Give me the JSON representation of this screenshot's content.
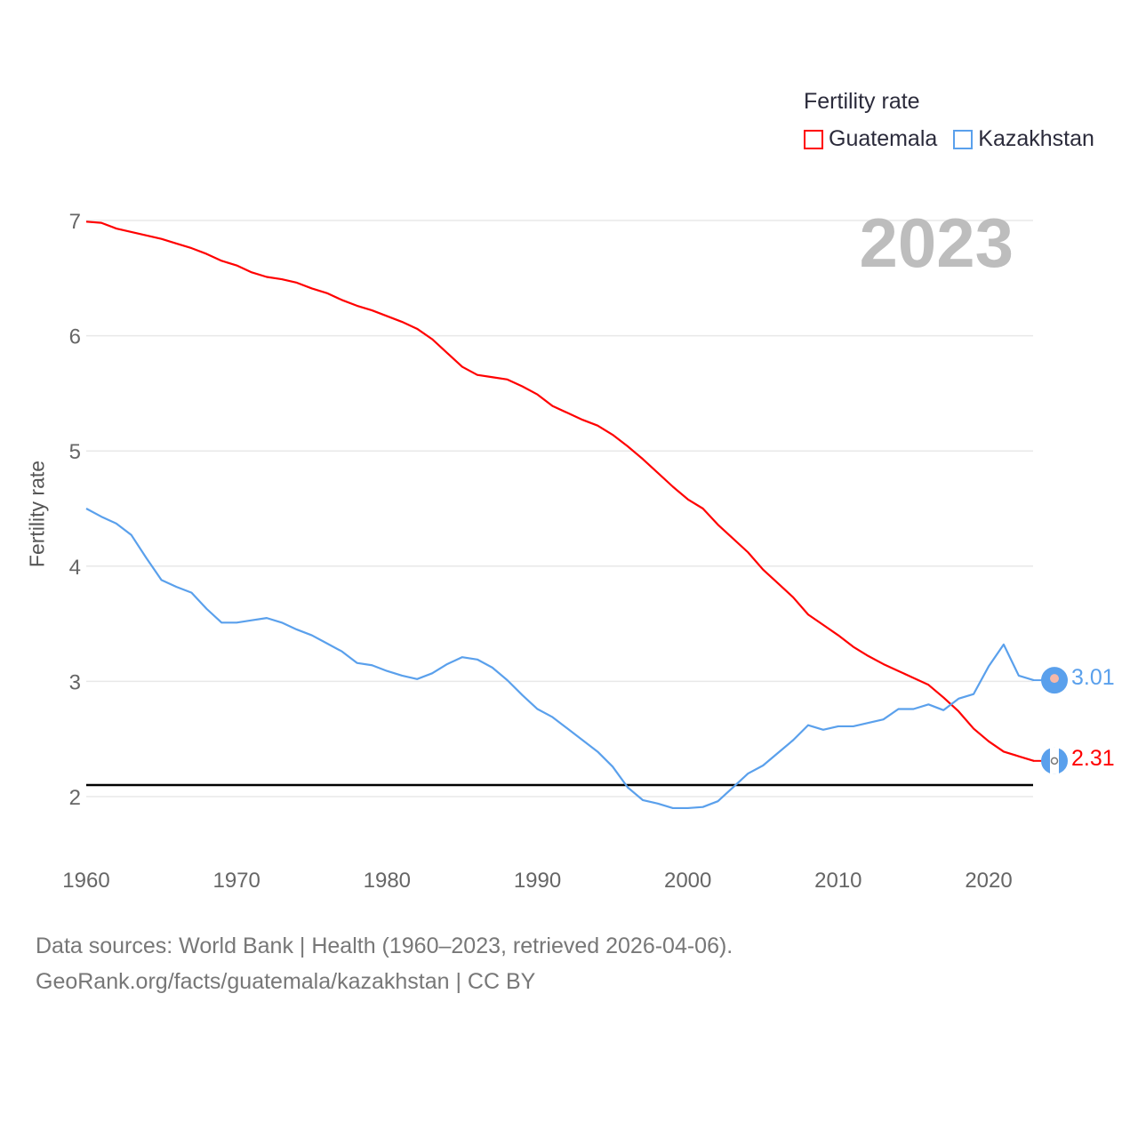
{
  "legend": {
    "title": "Fertility rate",
    "items": [
      {
        "name": "Guatemala",
        "color": "#ff0000"
      },
      {
        "name": "Kazakhstan",
        "color": "#5aa0ec"
      }
    ]
  },
  "year_display": "2023",
  "footer": {
    "line1": "Data sources: World Bank | Health (1960–2023, retrieved 2026-04-06).",
    "line2": "GeoRank.org/facts/guatemala/kazakhstan | CC BY"
  },
  "end_labels": {
    "guatemala": "2.31",
    "kazakhstan": "3.01"
  },
  "chart_data": {
    "type": "line",
    "title": "",
    "xlabel": "",
    "ylabel": "Fertility rate",
    "xlim": [
      1960,
      2023
    ],
    "ylim": [
      1.6,
      7.1
    ],
    "x_ticks": [
      "1960",
      "1970",
      "1980",
      "1990",
      "2000",
      "2010",
      "2020"
    ],
    "y_ticks": [
      "2",
      "3",
      "4",
      "5",
      "6",
      "7"
    ],
    "reference_line": 2.1,
    "grid": true,
    "legend_position": "top-right",
    "x": [
      1960,
      1961,
      1962,
      1963,
      1964,
      1965,
      1966,
      1967,
      1968,
      1969,
      1970,
      1971,
      1972,
      1973,
      1974,
      1975,
      1976,
      1977,
      1978,
      1979,
      1980,
      1981,
      1982,
      1983,
      1984,
      1985,
      1986,
      1987,
      1988,
      1989,
      1990,
      1991,
      1992,
      1993,
      1994,
      1995,
      1996,
      1997,
      1998,
      1999,
      2000,
      2001,
      2002,
      2003,
      2004,
      2005,
      2006,
      2007,
      2008,
      2009,
      2010,
      2011,
      2012,
      2013,
      2014,
      2015,
      2016,
      2017,
      2018,
      2019,
      2020,
      2021,
      2022,
      2023
    ],
    "series": [
      {
        "name": "Guatemala",
        "color": "#ff0000",
        "values": [
          6.99,
          6.98,
          6.93,
          6.9,
          6.87,
          6.84,
          6.8,
          6.76,
          6.71,
          6.65,
          6.61,
          6.55,
          6.51,
          6.49,
          6.46,
          6.41,
          6.37,
          6.31,
          6.26,
          6.22,
          6.17,
          6.12,
          6.06,
          5.97,
          5.85,
          5.73,
          5.66,
          5.64,
          5.62,
          5.56,
          5.49,
          5.39,
          5.33,
          5.27,
          5.22,
          5.14,
          5.04,
          4.93,
          4.81,
          4.69,
          4.58,
          4.5,
          4.36,
          4.24,
          4.12,
          3.97,
          3.85,
          3.73,
          3.58,
          3.49,
          3.4,
          3.3,
          3.22,
          3.15,
          3.09,
          3.03,
          2.97,
          2.86,
          2.74,
          2.59,
          2.48,
          2.39,
          2.35,
          2.31
        ]
      },
      {
        "name": "Kazakhstan",
        "color": "#5aa0ec",
        "values": [
          4.5,
          4.43,
          4.37,
          4.27,
          4.07,
          3.88,
          3.82,
          3.77,
          3.63,
          3.51,
          3.51,
          3.53,
          3.55,
          3.51,
          3.45,
          3.4,
          3.33,
          3.26,
          3.16,
          3.14,
          3.09,
          3.05,
          3.02,
          3.07,
          3.15,
          3.21,
          3.19,
          3.12,
          3.01,
          2.88,
          2.76,
          2.69,
          2.59,
          2.49,
          2.39,
          2.26,
          2.08,
          1.97,
          1.94,
          1.9,
          1.9,
          1.91,
          1.96,
          2.08,
          2.2,
          2.27,
          2.38,
          2.49,
          2.62,
          2.58,
          2.61,
          2.61,
          2.64,
          2.67,
          2.76,
          2.76,
          2.8,
          2.75,
          2.85,
          2.89,
          3.13,
          3.32,
          3.05,
          3.01
        ]
      }
    ]
  }
}
